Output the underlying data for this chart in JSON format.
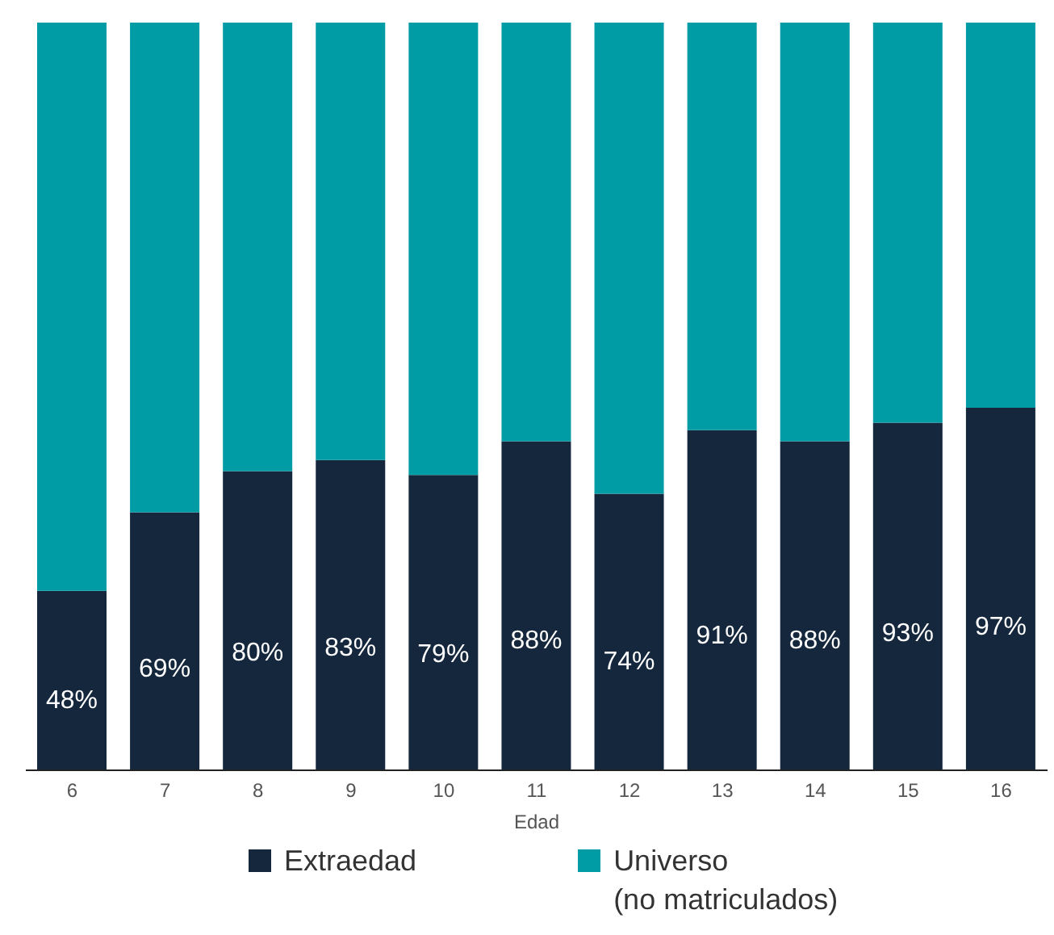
{
  "chart_data": {
    "type": "bar",
    "stacked": true,
    "xlabel": "Edad",
    "categories": [
      "6",
      "7",
      "8",
      "9",
      "10",
      "11",
      "12",
      "13",
      "14",
      "15",
      "16"
    ],
    "series": [
      {
        "name": "Extraedad",
        "color": "#15273d",
        "values": [
          48,
          69,
          80,
          83,
          79,
          88,
          74,
          91,
          88,
          93,
          97
        ],
        "value_labels": [
          "48%",
          "69%",
          "80%",
          "83%",
          "79%",
          "88%",
          "74%",
          "91%",
          "88%",
          "93%",
          "97%"
        ]
      },
      {
        "name": "Universo\n(no matriculados)",
        "color": "#009ca6",
        "values": [
          152,
          131,
          120,
          117,
          121,
          112,
          126,
          109,
          112,
          107,
          103
        ]
      }
    ],
    "ylim": [
      0,
      200
    ],
    "tick_labels": "x",
    "legend": "bottom"
  }
}
